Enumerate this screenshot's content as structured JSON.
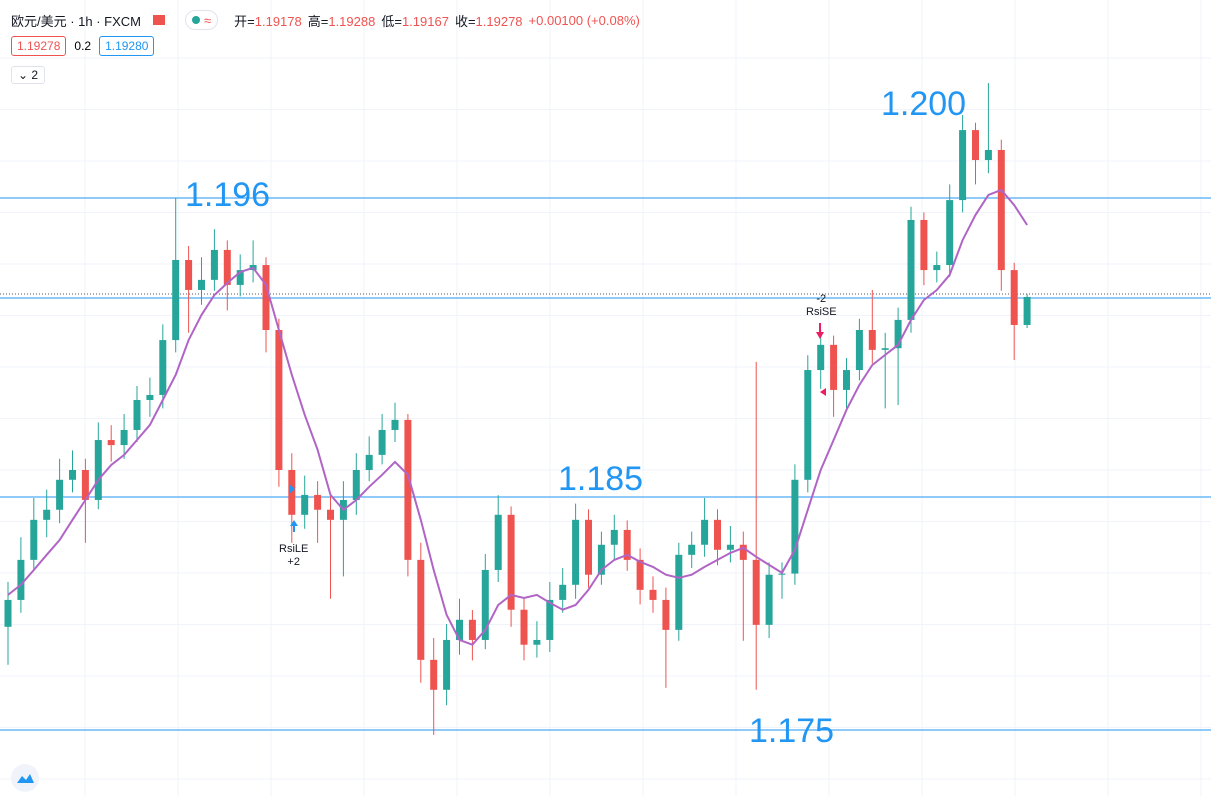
{
  "header": {
    "symbol": "欧元/美元 · 1h · FXCM",
    "open_label": "开=",
    "open": "1.19178",
    "high_label": "高=",
    "high": "1.19288",
    "low_label": "低=",
    "low": "1.19167",
    "close_label": "收=",
    "close": "1.19278",
    "change": "+0.00100 (+0.08%)",
    "bid": "1.19278",
    "spread": "0.2",
    "ask": "1.19280",
    "indicators": "2"
  },
  "annotations": {
    "level_1": "1.196",
    "level_2": "1.185",
    "level_3": "1.175",
    "level_4": "1.200",
    "long_signal": "RsiLE",
    "long_qty": "+2",
    "short_qty": "-2",
    "short_signal": "RsiSE"
  },
  "chart_data": {
    "type": "candlestick",
    "up_color": "#26a69a",
    "down_color": "#ef5350",
    "ma_color": "#b065c6",
    "grid": true,
    "ylim": [
      1.175,
      1.202
    ],
    "ohlc": [
      [
        1.181,
        1.1826,
        1.17964,
        1.18196
      ],
      [
        1.18196,
        1.1842,
        1.1815,
        1.18339
      ],
      [
        1.18339,
        1.1856,
        1.183,
        1.18482
      ],
      [
        1.18482,
        1.1859,
        1.1842,
        1.18518
      ],
      [
        1.18518,
        1.187,
        1.1847,
        1.18625
      ],
      [
        1.18625,
        1.1873,
        1.1858,
        1.1866
      ],
      [
        1.1866,
        1.187,
        1.184,
        1.18553
      ],
      [
        1.18553,
        1.1883,
        1.1852,
        1.18767
      ],
      [
        1.18767,
        1.1882,
        1.1869,
        1.18749
      ],
      [
        1.18749,
        1.1886,
        1.187,
        1.18803
      ],
      [
        1.18803,
        1.1896,
        1.1876,
        1.1891
      ],
      [
        1.1891,
        1.1899,
        1.1885,
        1.18928
      ],
      [
        1.18928,
        1.1918,
        1.1888,
        1.19124
      ],
      [
        1.19124,
        1.19632,
        1.1908,
        1.1941
      ],
      [
        1.1941,
        1.1946,
        1.1915,
        1.19303
      ],
      [
        1.19303,
        1.1942,
        1.1925,
        1.19339
      ],
      [
        1.19339,
        1.1952,
        1.193,
        1.19446
      ],
      [
        1.19446,
        1.1948,
        1.1923,
        1.19321
      ],
      [
        1.19321,
        1.1943,
        1.1928,
        1.19374
      ],
      [
        1.19374,
        1.1948,
        1.1933,
        1.19392
      ],
      [
        1.19392,
        1.1942,
        1.1908,
        1.1916
      ],
      [
        1.1916,
        1.192,
        1.186,
        1.1866
      ],
      [
        1.1866,
        1.1872,
        1.184,
        1.185
      ],
      [
        1.185,
        1.1864,
        1.1845,
        1.18571
      ],
      [
        1.18571,
        1.1862,
        1.184,
        1.18518
      ],
      [
        1.18518,
        1.1857,
        1.182,
        1.18482
      ],
      [
        1.18482,
        1.1862,
        1.1828,
        1.18553
      ],
      [
        1.18553,
        1.1872,
        1.185,
        1.1866
      ],
      [
        1.1866,
        1.1878,
        1.1862,
        1.18714
      ],
      [
        1.18714,
        1.1886,
        1.1868,
        1.18803
      ],
      [
        1.18803,
        1.189,
        1.1876,
        1.18839
      ],
      [
        1.18839,
        1.1886,
        1.1828,
        1.18339
      ],
      [
        1.18339,
        1.184,
        1.179,
        1.17982
      ],
      [
        1.17982,
        1.1806,
        1.17714,
        1.17875
      ],
      [
        1.17875,
        1.1811,
        1.1782,
        1.18053
      ],
      [
        1.18053,
        1.182,
        1.18,
        1.18125
      ],
      [
        1.18125,
        1.1816,
        1.1798,
        1.18053
      ],
      [
        1.18053,
        1.1836,
        1.1802,
        1.18303
      ],
      [
        1.18303,
        1.1857,
        1.1826,
        1.185
      ],
      [
        1.185,
        1.1853,
        1.181,
        1.18161
      ],
      [
        1.18161,
        1.182,
        1.1798,
        1.18036
      ],
      [
        1.18036,
        1.1812,
        1.1799,
        1.18053
      ],
      [
        1.18053,
        1.1826,
        1.1801,
        1.18196
      ],
      [
        1.18196,
        1.1831,
        1.1815,
        1.1825
      ],
      [
        1.1825,
        1.1854,
        1.182,
        1.18482
      ],
      [
        1.18482,
        1.1852,
        1.1824,
        1.18286
      ],
      [
        1.18286,
        1.1844,
        1.1825,
        1.18393
      ],
      [
        1.18393,
        1.185,
        1.1834,
        1.18446
      ],
      [
        1.18446,
        1.1848,
        1.183,
        1.18339
      ],
      [
        1.18339,
        1.1838,
        1.1818,
        1.18232
      ],
      [
        1.18232,
        1.1828,
        1.1815,
        1.18196
      ],
      [
        1.18196,
        1.1824,
        1.17882,
        1.18089
      ],
      [
        1.18089,
        1.184,
        1.1805,
        1.18357
      ],
      [
        1.18357,
        1.1844,
        1.1831,
        1.18393
      ],
      [
        1.18393,
        1.1856,
        1.1835,
        1.18482
      ],
      [
        1.18482,
        1.1852,
        1.1832,
        1.18375
      ],
      [
        1.18375,
        1.1846,
        1.1833,
        1.18393
      ],
      [
        1.18393,
        1.1844,
        1.1805,
        1.18339
      ],
      [
        1.18339,
        1.19046,
        1.17875,
        1.18107
      ],
      [
        1.18107,
        1.1833,
        1.1806,
        1.18286
      ],
      [
        1.18286,
        1.1833,
        1.182,
        1.1829
      ],
      [
        1.1829,
        1.1868,
        1.1825,
        1.18625
      ],
      [
        1.18625,
        1.1907,
        1.1858,
        1.19017
      ],
      [
        1.19017,
        1.1916,
        1.1895,
        1.19107
      ],
      [
        1.19107,
        1.1914,
        1.1885,
        1.18946
      ],
      [
        1.18946,
        1.1906,
        1.1888,
        1.19017
      ],
      [
        1.19017,
        1.192,
        1.1898,
        1.1916
      ],
      [
        1.1916,
        1.19303,
        1.1904,
        1.19089
      ],
      [
        1.19089,
        1.1915,
        1.1888,
        1.19095
      ],
      [
        1.19095,
        1.1924,
        1.18892,
        1.19196
      ],
      [
        1.19196,
        1.196,
        1.1915,
        1.19553
      ],
      [
        1.19553,
        1.1958,
        1.1932,
        1.19374
      ],
      [
        1.19374,
        1.1944,
        1.1933,
        1.19392
      ],
      [
        1.19392,
        1.1968,
        1.1935,
        1.19624
      ],
      [
        1.19624,
        1.19928,
        1.1958,
        1.19874
      ],
      [
        1.19874,
        1.199,
        1.1968,
        1.19767
      ],
      [
        1.19767,
        1.20042,
        1.1972,
        1.19803
      ],
      [
        1.19803,
        1.1984,
        1.193,
        1.19374
      ],
      [
        1.19374,
        1.194,
        1.19053,
        1.19178
      ],
      [
        1.19178,
        1.19288,
        1.19167,
        1.19278
      ]
    ],
    "ma": [
      1.18214,
      1.1825,
      1.18303,
      1.18357,
      1.1841,
      1.18482,
      1.18553,
      1.18625,
      1.18678,
      1.18714,
      1.18767,
      1.18821,
      1.1891,
      1.19,
      1.19124,
      1.19214,
      1.19285,
      1.19328,
      1.19367,
      1.19382,
      1.19321,
      1.1916,
      1.19,
      1.18857,
      1.18732,
      1.18571,
      1.18518,
      1.18553,
      1.186,
      1.18643,
      1.18689,
      1.18643,
      1.18482,
      1.18303,
      1.18143,
      1.18053,
      1.18036,
      1.18089,
      1.18178,
      1.18214,
      1.18203,
      1.18214,
      1.18186,
      1.18161,
      1.18178,
      1.18232,
      1.18303,
      1.18339,
      1.18357,
      1.18332,
      1.18314,
      1.18286,
      1.18275,
      1.18286,
      1.18314,
      1.18339,
      1.18364,
      1.18382,
      1.1835,
      1.18321,
      1.18293,
      1.18375,
      1.18518,
      1.1866,
      1.18767,
      1.18875,
      1.18964,
      1.19035,
      1.19071,
      1.19107,
      1.19196,
      1.19267,
      1.19303,
      1.19357,
      1.19481,
      1.19571,
      1.19642,
      1.1966,
      1.19606,
      1.19535
    ]
  }
}
